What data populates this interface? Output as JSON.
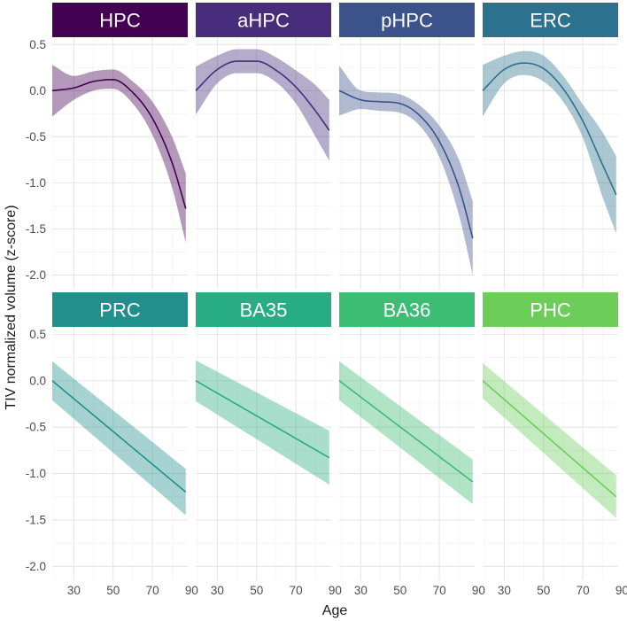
{
  "chart_data": {
    "type": "line",
    "layout": "facet-grid",
    "xlabel": "Age",
    "ylabel": "TIV normalized volume (z-score)",
    "xlim": [
      19,
      88
    ],
    "ylim": [
      -2.15,
      0.58
    ],
    "x_ticks": [
      30,
      50,
      70,
      90
    ],
    "x_tick_labels": [
      "30",
      "50",
      "70",
      "90"
    ],
    "y_ticks": [
      0.5,
      0.0,
      -0.5,
      -1.0,
      -1.5,
      -2.0
    ],
    "y_tick_labels": [
      "0.5",
      "0.0",
      "-0.5",
      "-1.0",
      "-1.5",
      "-2.0"
    ],
    "grid": true,
    "panels": [
      {
        "label": "HPC",
        "strip_color": "#440154",
        "color": "#440154",
        "x": [
          19,
          30,
          40,
          50,
          60,
          70,
          80,
          87
        ],
        "y": [
          0.0,
          0.03,
          0.1,
          0.12,
          -0.02,
          -0.3,
          -0.78,
          -1.28
        ],
        "lower": [
          -0.28,
          -0.1,
          0.0,
          0.02,
          -0.14,
          -0.48,
          -1.05,
          -1.65
        ],
        "upper": [
          0.28,
          0.16,
          0.21,
          0.23,
          0.1,
          -0.12,
          -0.5,
          -0.9
        ]
      },
      {
        "label": "aHPC",
        "strip_color": "#472D7B",
        "color": "#472D7B",
        "x": [
          19,
          30,
          40,
          50,
          60,
          70,
          80,
          87
        ],
        "y": [
          0.0,
          0.23,
          0.32,
          0.32,
          0.22,
          0.04,
          -0.22,
          -0.43
        ],
        "lower": [
          -0.26,
          0.08,
          0.19,
          0.19,
          0.09,
          -0.14,
          -0.5,
          -0.76
        ],
        "upper": [
          0.26,
          0.38,
          0.45,
          0.45,
          0.36,
          0.22,
          0.06,
          -0.1
        ]
      },
      {
        "label": "pHPC",
        "strip_color": "#3B528B",
        "color": "#3B528B",
        "x": [
          19,
          30,
          40,
          50,
          60,
          70,
          80,
          87
        ],
        "y": [
          0.0,
          -0.1,
          -0.12,
          -0.14,
          -0.27,
          -0.55,
          -1.05,
          -1.6
        ],
        "lower": [
          -0.27,
          -0.2,
          -0.22,
          -0.24,
          -0.38,
          -0.72,
          -1.35,
          -2.0
        ],
        "upper": [
          0.27,
          0.0,
          -0.02,
          -0.04,
          -0.16,
          -0.38,
          -0.75,
          -1.2
        ]
      },
      {
        "label": "ERC",
        "strip_color": "#2C728E",
        "color": "#2C728E",
        "x": [
          19,
          30,
          40,
          50,
          60,
          70,
          80,
          87
        ],
        "y": [
          0.0,
          0.23,
          0.3,
          0.24,
          0.02,
          -0.33,
          -0.8,
          -1.13
        ],
        "lower": [
          -0.28,
          0.08,
          0.17,
          0.1,
          -0.12,
          -0.51,
          -1.15,
          -1.55
        ],
        "upper": [
          0.28,
          0.38,
          0.43,
          0.38,
          0.16,
          -0.15,
          -0.45,
          -0.71
        ]
      },
      {
        "label": "PRC",
        "strip_color": "#21908C",
        "color": "#21908C",
        "x": [
          19,
          87
        ],
        "y": [
          0.0,
          -1.2
        ],
        "lower": [
          -0.21,
          -1.45
        ],
        "upper": [
          0.21,
          -0.95
        ]
      },
      {
        "label": "BA35",
        "strip_color": "#27AD81",
        "color": "#27AD81",
        "x": [
          19,
          87
        ],
        "y": [
          0.0,
          -0.83
        ],
        "lower": [
          -0.22,
          -1.12
        ],
        "upper": [
          0.22,
          -0.54
        ]
      },
      {
        "label": "BA36",
        "strip_color": "#3DBC74",
        "color": "#3DBC74",
        "x": [
          19,
          87
        ],
        "y": [
          0.0,
          -1.09
        ],
        "lower": [
          -0.21,
          -1.33
        ],
        "upper": [
          0.21,
          -0.85
        ]
      },
      {
        "label": "PHC",
        "strip_color": "#6CCE59",
        "color": "#6CCE59",
        "x": [
          19,
          87
        ],
        "y": [
          0.0,
          -1.25
        ],
        "lower": [
          -0.19,
          -1.48
        ],
        "upper": [
          0.19,
          -1.02
        ]
      }
    ]
  }
}
